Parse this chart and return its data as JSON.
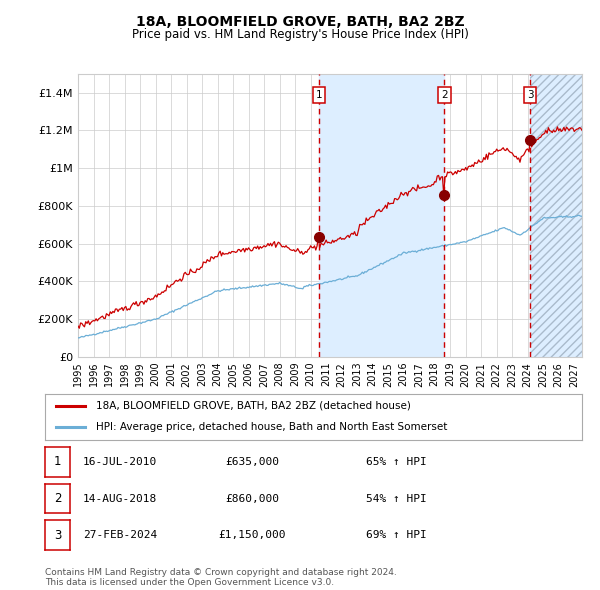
{
  "title": "18A, BLOOMFIELD GROVE, BATH, BA2 2BZ",
  "subtitle": "Price paid vs. HM Land Registry's House Price Index (HPI)",
  "legend_property": "18A, BLOOMFIELD GROVE, BATH, BA2 2BZ (detached house)",
  "legend_hpi": "HPI: Average price, detached house, Bath and North East Somerset",
  "footer1": "Contains HM Land Registry data © Crown copyright and database right 2024.",
  "footer2": "This data is licensed under the Open Government Licence v3.0.",
  "transactions": [
    {
      "num": 1,
      "date_label": "16-JUL-2010",
      "price_label": "£635,000",
      "pct_label": "65% ↑ HPI",
      "x_year": 2010.54,
      "price": 635000
    },
    {
      "num": 2,
      "date_label": "14-AUG-2018",
      "price_label": "£860,000",
      "pct_label": "54% ↑ HPI",
      "x_year": 2018.62,
      "price": 860000
    },
    {
      "num": 3,
      "date_label": "27-FEB-2024",
      "price_label": "£1,150,000",
      "pct_label": "69% ↑ HPI",
      "x_year": 2024.16,
      "price": 1150000
    }
  ],
  "hpi_color": "#6baed6",
  "price_color": "#cc0000",
  "dot_color": "#880000",
  "vline_color": "#cc0000",
  "shade_color": "#ddeeff",
  "ylim": [
    0,
    1500000
  ],
  "yticks": [
    0,
    200000,
    400000,
    600000,
    800000,
    1000000,
    1200000,
    1400000
  ],
  "ytick_labels": [
    "£0",
    "£200K",
    "£400K",
    "£600K",
    "£800K",
    "£1M",
    "£1.2M",
    "£1.4M"
  ],
  "xmin_year": 1995.0,
  "xmax_year": 2027.5,
  "xticks": [
    1995,
    1996,
    1997,
    1998,
    1999,
    2000,
    2001,
    2002,
    2003,
    2004,
    2005,
    2006,
    2007,
    2008,
    2009,
    2010,
    2011,
    2012,
    2013,
    2014,
    2015,
    2016,
    2017,
    2018,
    2019,
    2020,
    2021,
    2022,
    2023,
    2024,
    2025,
    2026,
    2027
  ],
  "background_color": "#ffffff",
  "grid_color": "#cccccc",
  "title_fontsize": 10,
  "subtitle_fontsize": 8.5
}
